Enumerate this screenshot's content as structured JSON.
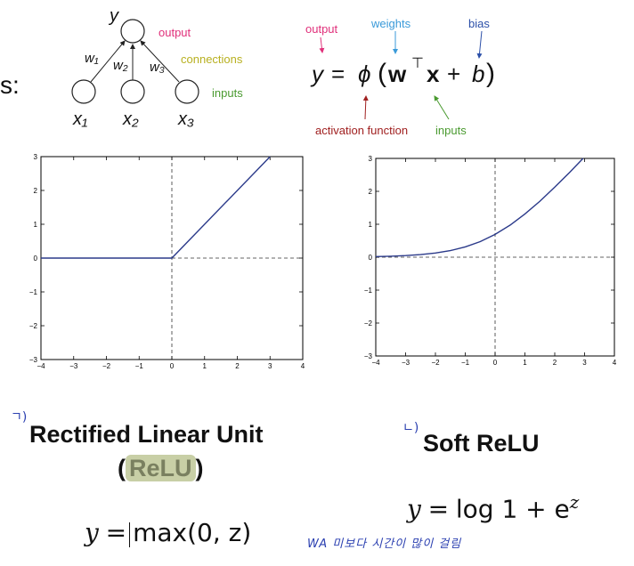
{
  "prefix": "s:",
  "neuron": {
    "output_var": "y",
    "weights": [
      "w₁",
      "w₂",
      "w₃"
    ],
    "inputs": [
      "x₁",
      "x₂",
      "x₃"
    ],
    "labels": {
      "output": "output",
      "connections": "connections",
      "inputs": "inputs"
    }
  },
  "equation": {
    "labels": {
      "output": "output",
      "weights": "weights",
      "bias": "bias",
      "activation": "activation function",
      "inputs": "inputs"
    },
    "parts": {
      "lhs": "y",
      "eq": "=",
      "phi": "ϕ",
      "lparen": "(",
      "w": "w",
      "T": "⊤",
      "x": "x",
      "plus": "+",
      "b": "b",
      "rparen": ")"
    }
  },
  "colors": {
    "output": "#e0307a",
    "weights": "#3a9ad9",
    "bias": "#2b4fa8",
    "connections": "#b8b020",
    "inputs": "#4a9a30",
    "activation": "#a02020",
    "curve": "#2b3a8a",
    "annotation": "#2a3fb0",
    "highlight": "#c8cfa6"
  },
  "chart_data": [
    {
      "type": "line",
      "series": [
        {
          "x": [
            -4,
            0,
            3.0
          ],
          "y": [
            0,
            0,
            3.0
          ]
        }
      ],
      "xlim": [
        -4,
        4
      ],
      "ylim": [
        -3,
        3
      ],
      "xticks": [
        -4,
        -3,
        -2,
        -1,
        0,
        1,
        2,
        3,
        4
      ],
      "yticks": [
        3,
        2,
        1,
        0,
        -1,
        -2,
        -3
      ],
      "grid": false
    },
    {
      "type": "line",
      "series": [
        {
          "x": [
            -4.0,
            -3.5,
            -3.0,
            -2.5,
            -2.0,
            -1.5,
            -1.0,
            -0.5,
            0.0,
            0.5,
            1.0,
            1.5,
            2.0,
            2.5,
            2.95
          ],
          "y": [
            0.018,
            0.03,
            0.049,
            0.079,
            0.127,
            0.201,
            0.313,
            0.474,
            0.693,
            0.974,
            1.313,
            1.701,
            2.127,
            2.579,
            2.999
          ]
        }
      ],
      "xlim": [
        -4,
        4
      ],
      "ylim": [
        -3,
        3
      ],
      "xticks": [
        -4,
        -3,
        -2,
        -1,
        0,
        1,
        2,
        3,
        4
      ],
      "yticks": [
        3,
        2,
        1,
        0,
        -1,
        -2,
        -3
      ],
      "grid": false
    }
  ],
  "relu": {
    "mark": "ㄱ)",
    "title_line1": "Rectified Linear Unit",
    "paren_open": "(",
    "abbr": "ReLU",
    "paren_close": ")",
    "formula_lhs": "y",
    "formula_eq": "=",
    "formula_rhs": "max(0, z)"
  },
  "softrelu": {
    "mark": "ㄴ)",
    "title": "Soft ReLU",
    "formula_lhs": "y",
    "formula_eq": "=",
    "formula_rhs_log": "log 1 + e",
    "formula_sup": "z"
  },
  "annotation": "WA 미보다 시간이 많이 걸림"
}
